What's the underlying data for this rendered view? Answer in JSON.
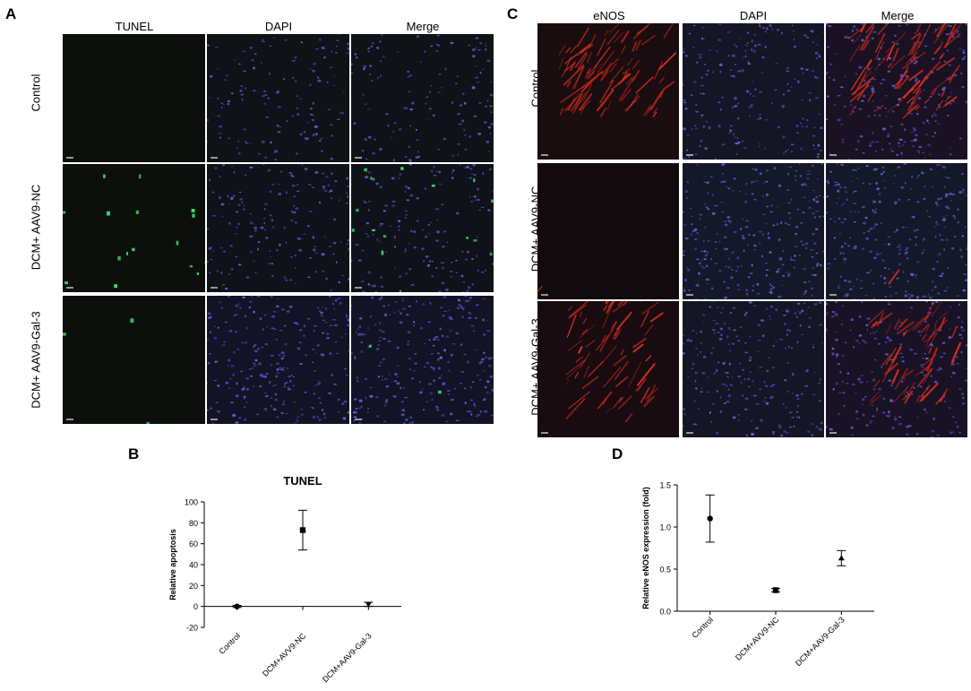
{
  "panels": {
    "A": {
      "letter": "A",
      "columns": [
        "TUNEL",
        "DAPI",
        "Merge"
      ],
      "rows": [
        "Control",
        "DCM+ AAV9-NC",
        "DCM+ AAV9-Gal-3"
      ]
    },
    "C": {
      "letter": "C",
      "columns": [
        "eNOS",
        "DAPI",
        "Merge"
      ],
      "rows": [
        "Control",
        "DCM+ AAV9-NC",
        "DCM+ AAV9-Gal-3"
      ]
    },
    "B": {
      "letter": "B"
    },
    "D": {
      "letter": "D"
    }
  },
  "chart_data": [
    {
      "type": "scatter",
      "title": "TUNEL",
      "xlabel": "",
      "ylabel": "Relative apoptosis",
      "categories": [
        "Control",
        "DCM+AVV9-NC",
        "DCM+AAV9-Gal-3"
      ],
      "values": [
        0,
        73,
        2
      ],
      "error": [
        1,
        19,
        2
      ],
      "markers": [
        "circle",
        "square",
        "triangle-down"
      ],
      "ylim": [
        -20,
        100
      ],
      "yticks": [
        "-20",
        "0",
        "20",
        "40",
        "60",
        "80",
        "100"
      ],
      "grid": false
    },
    {
      "type": "scatter",
      "title": "",
      "xlabel": "",
      "ylabel": "Relative eNOS expression (fold)",
      "categories": [
        "Control",
        "DCM+AVV9-NC",
        "DCM+AAV9-Gal-3"
      ],
      "values": [
        1.1,
        0.25,
        0.63
      ],
      "error": [
        0.28,
        0.02,
        0.09
      ],
      "markers": [
        "circle",
        "square",
        "triangle-up"
      ],
      "ylim": [
        0,
        1.5
      ],
      "yticks": [
        "0.0",
        "0.5",
        "1.0",
        "1.5"
      ],
      "grid": false
    }
  ]
}
